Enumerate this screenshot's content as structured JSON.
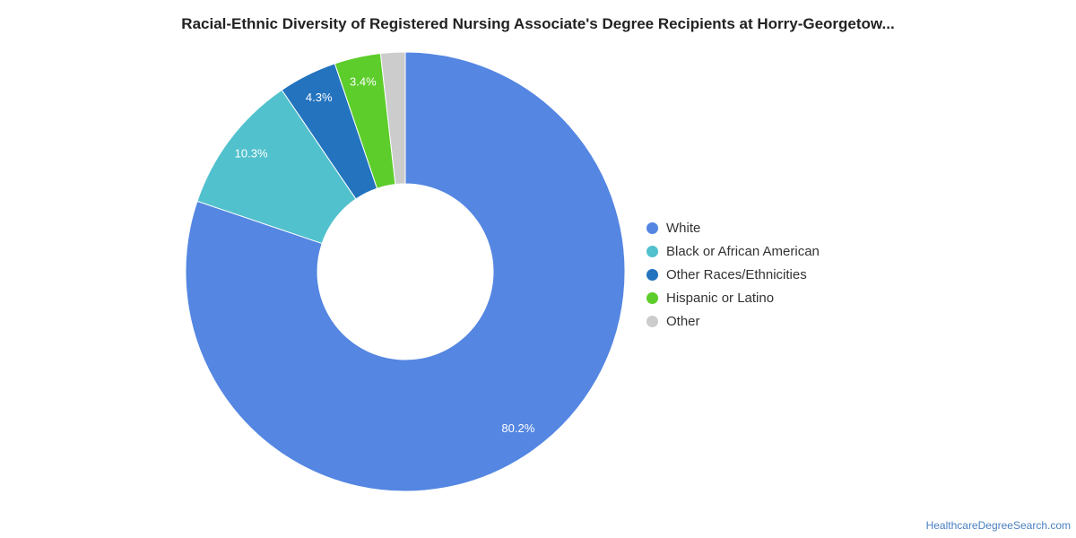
{
  "chart_data": {
    "type": "pie",
    "title": "Racial-Ethnic Diversity of Registered Nursing Associate's Degree Recipients at Horry-Georgetow...",
    "categories": [
      "White",
      "Black or African American",
      "Other Races/Ethnicities",
      "Hispanic or Latino",
      "Other"
    ],
    "values": [
      80.2,
      10.3,
      4.3,
      3.4,
      1.8
    ],
    "data_labels": [
      "80.2%",
      "10.3%",
      "4.3%",
      "3.4%",
      ""
    ],
    "colors": [
      "#5486e2",
      "#51c1cd",
      "#2373bf",
      "#5ccd2a",
      "#cccccc"
    ],
    "donut": true,
    "legend_position": "right"
  },
  "source": "HealthcareDegreeSearch.com"
}
